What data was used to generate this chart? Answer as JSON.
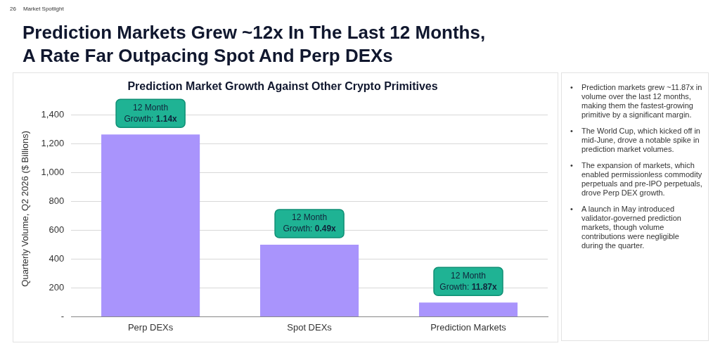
{
  "chart_data": {
    "type": "bar",
    "title": "Prediction Market Growth Against Other Crypto Primitives",
    "ylabel": "Quarterly Volume, Q2 2026 ($ Billions)",
    "categories": [
      "Perp DEXs",
      "Spot DEXs",
      "Prediction Markets"
    ],
    "values": [
      1265,
      500,
      98
    ],
    "color": "#a994fc",
    "ylim": [
      0,
      1500
    ],
    "yticks": [
      {
        "value": 0,
        "label": "-"
      },
      {
        "value": 200,
        "label": "200"
      },
      {
        "value": 400,
        "label": "400"
      },
      {
        "value": 600,
        "label": "600"
      },
      {
        "value": 800,
        "label": "800"
      },
      {
        "value": 1000,
        "label": "1,000"
      },
      {
        "value": 1200,
        "label": "1,200"
      },
      {
        "value": 1400,
        "label": "1,400"
      }
    ],
    "grid": "y",
    "legend": false,
    "annotations": [
      "26",
      "Market Spotlight",
      "Prediction Markets Grew ~12x In The Last 12 Months, A Rate Far Outpacing Spot And Perp DEXs",
      {
        "text": "12 Month Growth: 1.14x",
        "x": "Perp DEXs",
        "y": 1265
      },
      {
        "text": "12 Month Growth: 0.49x",
        "x": "Spot DEXs",
        "y": 500
      },
      {
        "text": "12 Month Growth: 11.87x",
        "x": "Prediction Markets",
        "y": 98
      },
      "• Prediction markets grew ~11.87x in volume over the last 12 months, making them the fastest-growing primitive by a significant margin.",
      "• The World Cup, which kicked off in mid-June, drove a notable spike in prediction market volumes.",
      "• The expansion of markets, which enabled permissionless commodity perpetuals and pre-IPO perpetuals, drove Perp DEX growth.",
      "• A launch in May introduced validator-governed prediction markets, though volume contributions were negligible during the quarter."
    ]
  }
}
